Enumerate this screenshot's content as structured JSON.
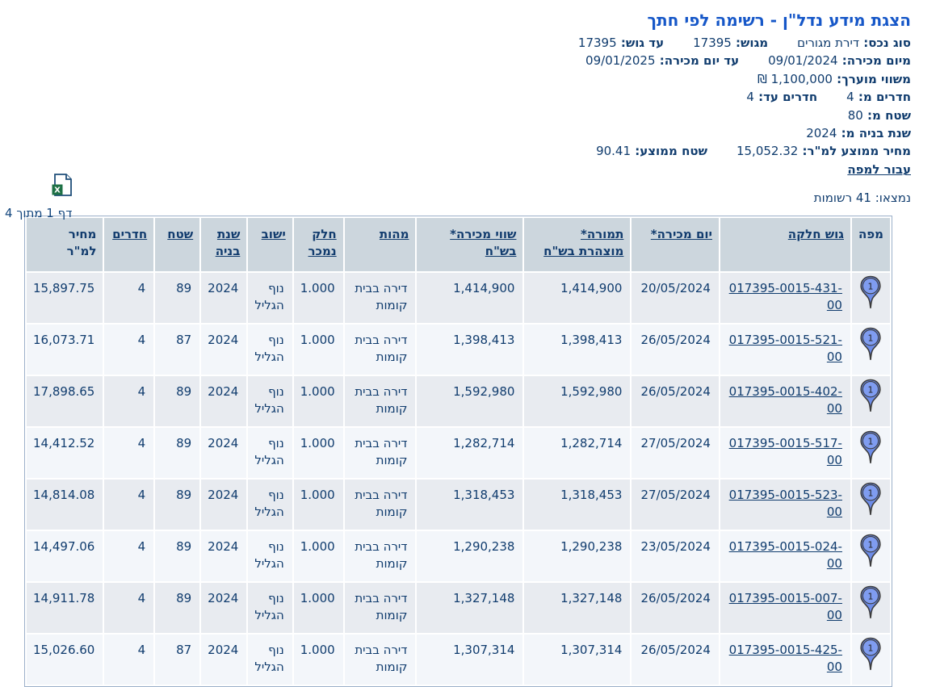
{
  "title": "הצגת מידע נדל\"ן - רשימה לפי חתך",
  "criteria": {
    "lines": [
      [
        {
          "id": "asset-type",
          "label": "סוג נכס:",
          "value": "דירת מגורים"
        },
        {
          "id": "from-gush",
          "label": "מגוש:",
          "value": "17395"
        },
        {
          "id": "to-gush",
          "label": "עד גוש:",
          "value": "17395"
        }
      ],
      [
        {
          "id": "from-sale-date",
          "label": "מיום מכירה:",
          "value": "09/01/2024"
        },
        {
          "id": "to-sale-date",
          "label": "עד יום מכירה:",
          "value": "09/01/2025"
        }
      ],
      [
        {
          "id": "from-estimated-value",
          "label": "משווי מוערך:",
          "value": "1,100,000 ₪"
        }
      ],
      [
        {
          "id": "rooms-from",
          "label": "חדרים מ:",
          "value": "4"
        },
        {
          "id": "rooms-to",
          "label": "חדרים עד:",
          "value": "4"
        }
      ],
      [
        {
          "id": "area-from",
          "label": "שטח מ:",
          "value": "80"
        }
      ],
      [
        {
          "id": "build-year-from",
          "label": "שנת בניה מ:",
          "value": "2024"
        }
      ],
      [
        {
          "id": "avg-price-sqm",
          "label": "מחיר ממוצע למ\"ר:",
          "value": "15,052.32"
        },
        {
          "id": "avg-area",
          "label": "שטח ממוצע:",
          "value": "90.41"
        }
      ]
    ],
    "map_link_label": "עבור למפה"
  },
  "results": {
    "found_text": "נמצאו: 41 רשומות",
    "page_text": "דף 1 מתוך 4",
    "excel_icon": "excel-export-icon",
    "map_pin_icon": "map-pin-icon"
  },
  "table": {
    "columns": [
      {
        "key": "map",
        "label_lines": [
          "מפה"
        ],
        "sortable": false,
        "width": 36
      },
      {
        "key": "gush",
        "label_lines": [
          "גוש חלקה"
        ],
        "sortable": true,
        "width": 172
      },
      {
        "key": "sale_date",
        "label_lines": [
          "יום מכירה*"
        ],
        "sortable": true,
        "width": 108
      },
      {
        "key": "declared",
        "label_lines": [
          "תמורה*",
          "מוצהרת בש\"ח"
        ],
        "sortable": true,
        "width": 136
      },
      {
        "key": "sale_value",
        "label_lines": [
          "שווי מכירה*",
          "בש\"ח"
        ],
        "sortable": true,
        "width": 136
      },
      {
        "key": "essence",
        "label_lines": [
          "מהות"
        ],
        "sortable": true,
        "width": 92
      },
      {
        "key": "part_sold",
        "label_lines": [
          "חלק",
          "נמכר"
        ],
        "sortable": true,
        "width": 56
      },
      {
        "key": "city",
        "label_lines": [
          "ישוב"
        ],
        "sortable": true,
        "width": 54
      },
      {
        "key": "year_built",
        "label_lines": [
          "שנת",
          "בניה"
        ],
        "sortable": true,
        "width": 50
      },
      {
        "key": "area",
        "label_lines": [
          "שטח"
        ],
        "sortable": true,
        "width": 56
      },
      {
        "key": "rooms",
        "label_lines": [
          "חדרים"
        ],
        "sortable": true,
        "width": 61
      },
      {
        "key": "price_sqm",
        "label_lines": [
          "מחיר",
          "למ\"ר"
        ],
        "sortable": false,
        "width": 90
      }
    ],
    "rows": [
      {
        "map": "1",
        "gush": "017395-0015-431-00",
        "sale_date": "20/05/2024",
        "declared": "1,414,900",
        "sale_value": "1,414,900",
        "essence": "דירה בבית קומות",
        "part_sold": "1.000",
        "city": "נוף הגליל",
        "year_built": "2024",
        "area": "89",
        "rooms": "4",
        "price_sqm": "15,897.75"
      },
      {
        "map": "1",
        "gush": "017395-0015-521-00",
        "sale_date": "26/05/2024",
        "declared": "1,398,413",
        "sale_value": "1,398,413",
        "essence": "דירה בבית קומות",
        "part_sold": "1.000",
        "city": "נוף הגליל",
        "year_built": "2024",
        "area": "87",
        "rooms": "4",
        "price_sqm": "16,073.71"
      },
      {
        "map": "1",
        "gush": "017395-0015-402-00",
        "sale_date": "26/05/2024",
        "declared": "1,592,980",
        "sale_value": "1,592,980",
        "essence": "דירה בבית קומות",
        "part_sold": "1.000",
        "city": "נוף הגליל",
        "year_built": "2024",
        "area": "89",
        "rooms": "4",
        "price_sqm": "17,898.65"
      },
      {
        "map": "1",
        "gush": "017395-0015-517-00",
        "sale_date": "27/05/2024",
        "declared": "1,282,714",
        "sale_value": "1,282,714",
        "essence": "דירה בבית קומות",
        "part_sold": "1.000",
        "city": "נוף הגליל",
        "year_built": "2024",
        "area": "89",
        "rooms": "4",
        "price_sqm": "14,412.52"
      },
      {
        "map": "1",
        "gush": "017395-0015-523-00",
        "sale_date": "27/05/2024",
        "declared": "1,318,453",
        "sale_value": "1,318,453",
        "essence": "דירה בבית קומות",
        "part_sold": "1.000",
        "city": "נוף הגליל",
        "year_built": "2024",
        "area": "89",
        "rooms": "4",
        "price_sqm": "14,814.08"
      },
      {
        "map": "1",
        "gush": "017395-0015-024-00",
        "sale_date": "23/05/2024",
        "declared": "1,290,238",
        "sale_value": "1,290,238",
        "essence": "דירה בבית קומות",
        "part_sold": "1.000",
        "city": "נוף הגליל",
        "year_built": "2024",
        "area": "89",
        "rooms": "4",
        "price_sqm": "14,497.06"
      },
      {
        "map": "1",
        "gush": "017395-0015-007-00",
        "sale_date": "26/05/2024",
        "declared": "1,327,148",
        "sale_value": "1,327,148",
        "essence": "דירה בבית קומות",
        "part_sold": "1.000",
        "city": "נוף הגליל",
        "year_built": "2024",
        "area": "89",
        "rooms": "4",
        "price_sqm": "14,911.78"
      },
      {
        "map": "1",
        "gush": "017395-0015-425-00",
        "sale_date": "26/05/2024",
        "declared": "1,307,314",
        "sale_value": "1,307,314",
        "essence": "דירה בבית קומות",
        "part_sold": "1.000",
        "city": "נוף הגליל",
        "year_built": "2024",
        "area": "87",
        "rooms": "4",
        "price_sqm": "15,026.60"
      }
    ]
  },
  "colors": {
    "title": "#1657c8",
    "text": "#103c6e",
    "header_bg": "#ccd6dd",
    "row_odd": "#e8ebf0",
    "row_even": "#f3f6fa",
    "pin_fill": "#6d8ce8",
    "excel_green": "#1e7145",
    "table_border": "#9bb0c9"
  }
}
